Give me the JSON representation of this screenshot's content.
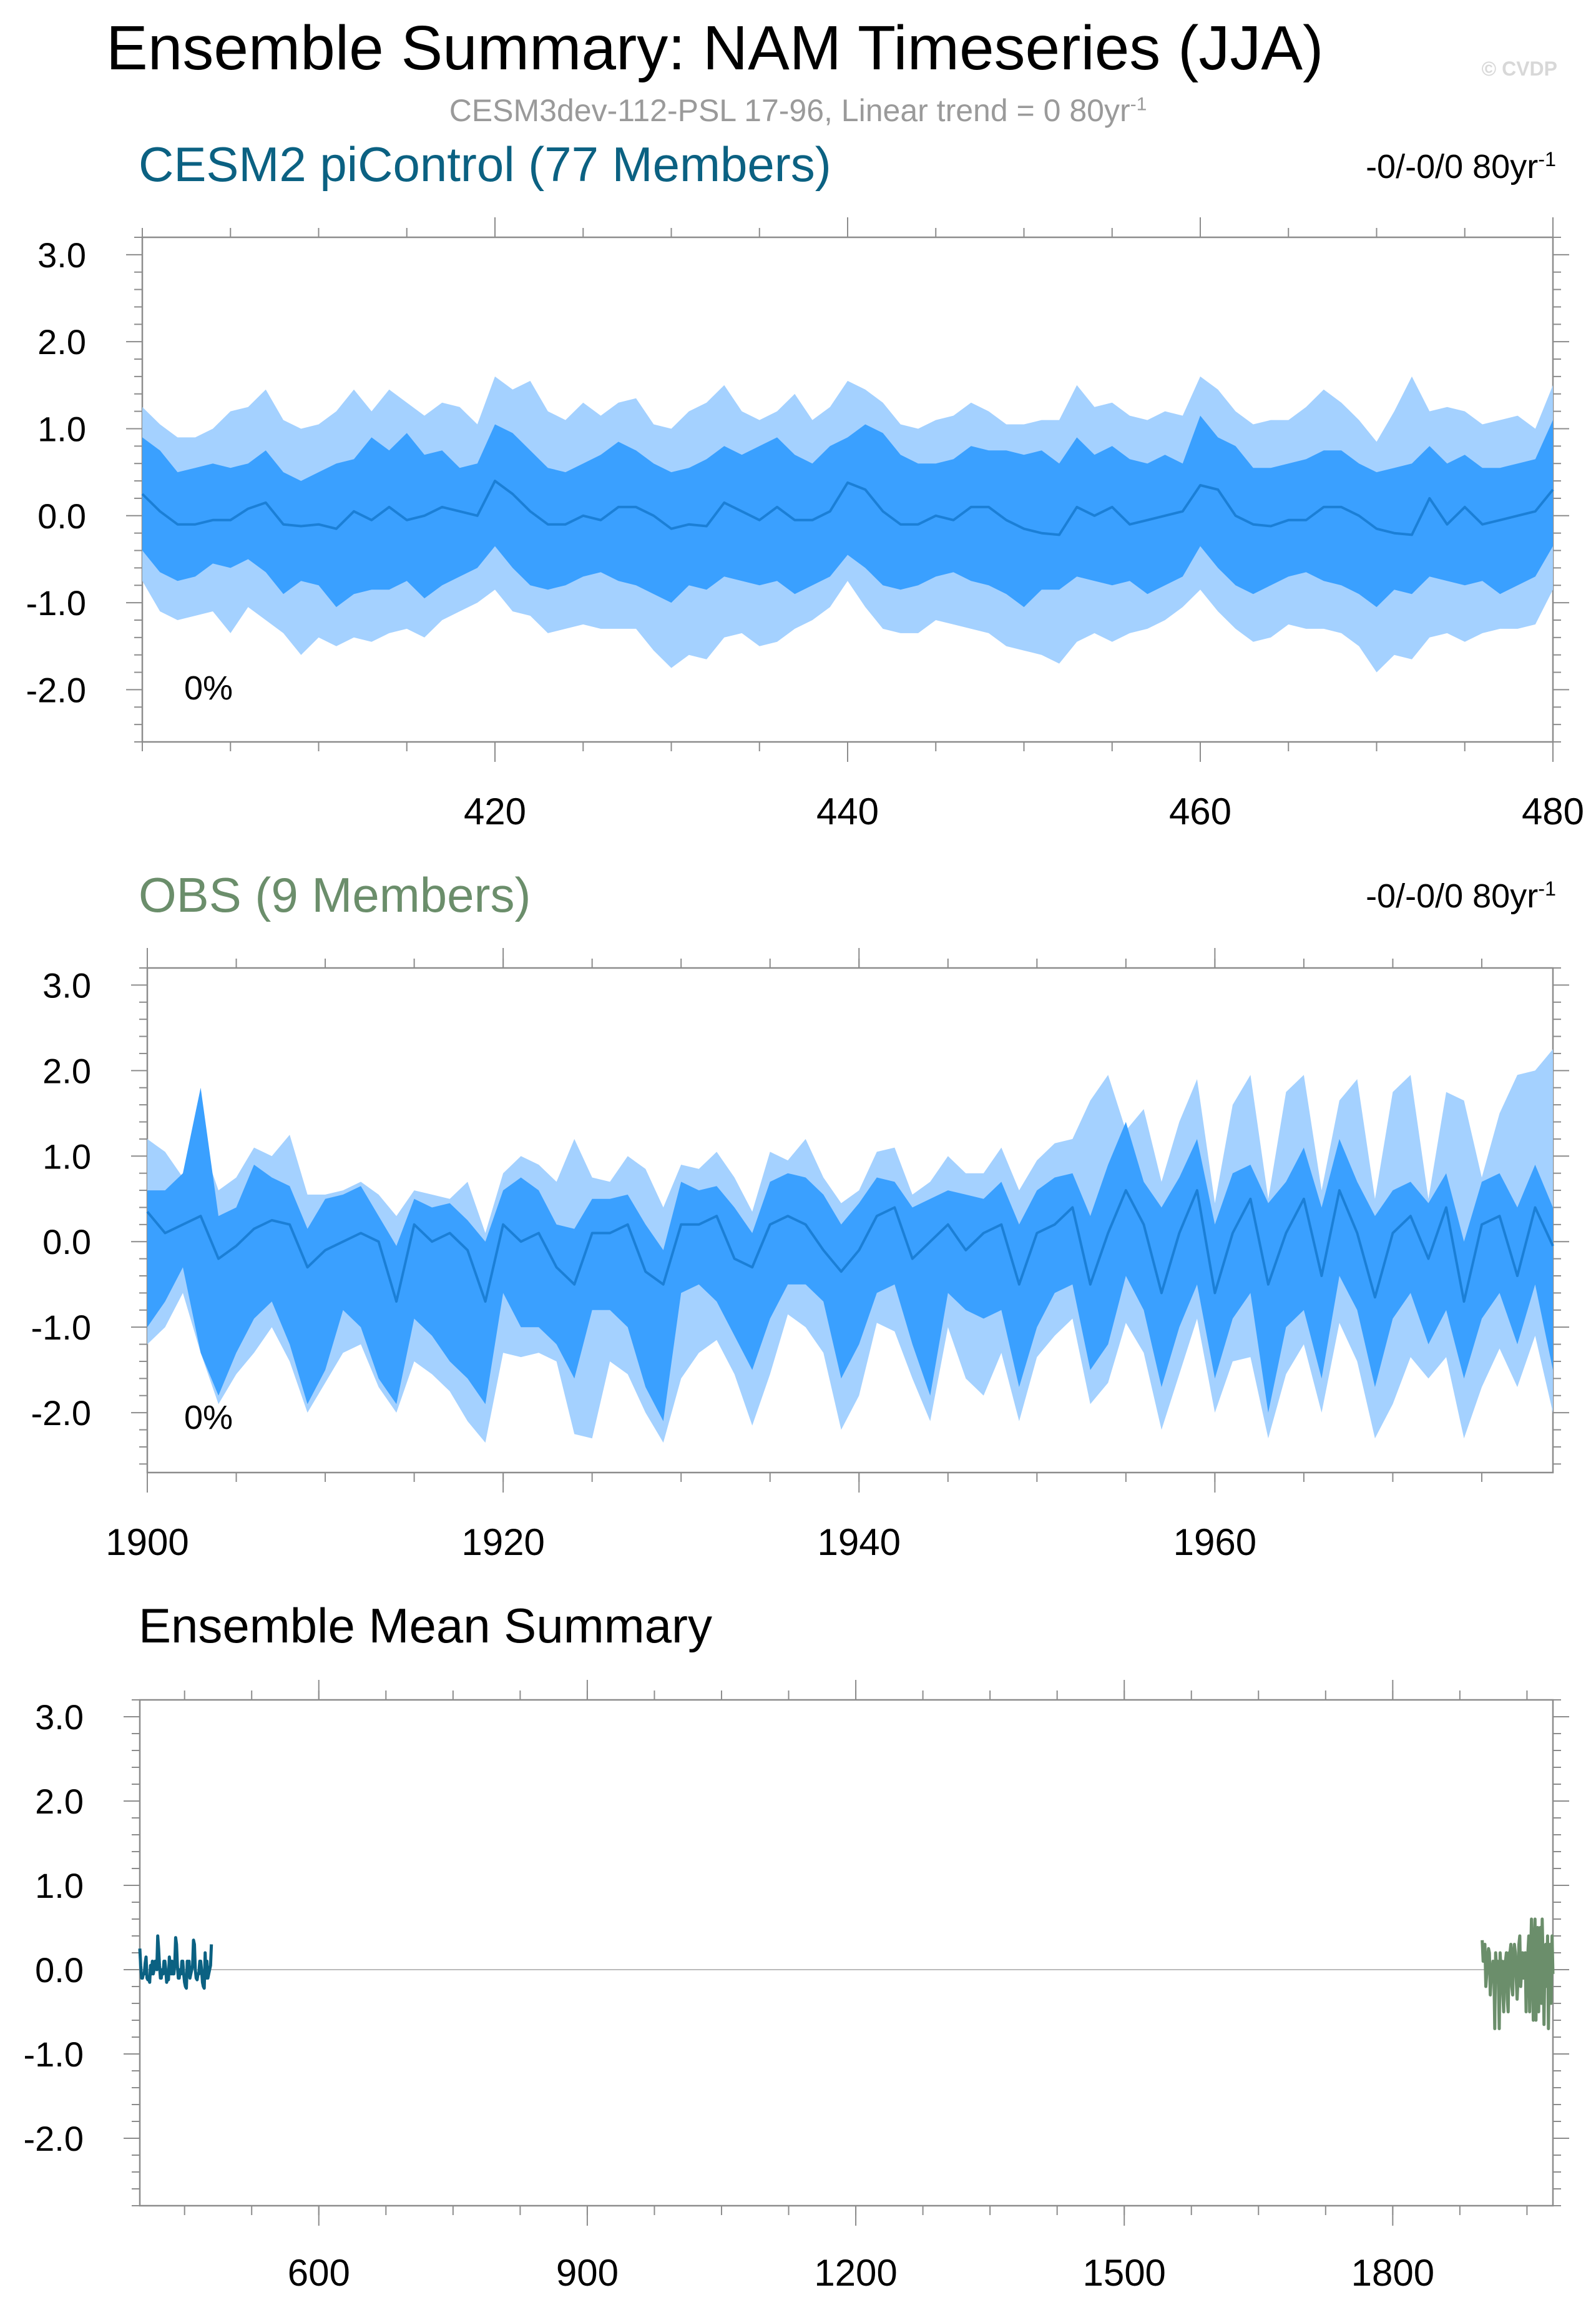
{
  "title": "Ensemble Summary: NAM Timeseries (JJA)",
  "watermark": "© CVDP",
  "subtitle": {
    "text": "CESM3dev-112-PSL 17-96, Linear trend = 0 80yr",
    "sup": "-1"
  },
  "colors": {
    "cesm": "#0b6182",
    "obs": "#6b8e6b",
    "inner_band": "#3aa0ff",
    "outer_band": "#a4d1ff",
    "mean_line": "#1b7fd6"
  },
  "chart_data": [
    {
      "type": "area",
      "title": "CESM2 piControl (77 Members)",
      "trend_label": {
        "text": "-0/-0/0 80yr",
        "sup": "-1"
      },
      "percent_label": "0%",
      "xlim": [
        400,
        480
      ],
      "ylim": [
        -2.6,
        3.2
      ],
      "x_ticks": [
        420,
        440,
        460,
        480
      ],
      "y_ticks": [
        "3.0",
        "2.0",
        "1.0",
        "0.0",
        "-1.0",
        "-2.0"
      ],
      "y_tick_values": [
        3,
        2,
        1,
        0,
        -1,
        -2
      ],
      "x": [
        400,
        401,
        402,
        403,
        404,
        405,
        406,
        407,
        408,
        409,
        410,
        411,
        412,
        413,
        414,
        415,
        416,
        417,
        418,
        419,
        420,
        421,
        422,
        423,
        424,
        425,
        426,
        427,
        428,
        429,
        430,
        431,
        432,
        433,
        434,
        435,
        436,
        437,
        438,
        439,
        440,
        441,
        442,
        443,
        444,
        445,
        446,
        447,
        448,
        449,
        450,
        451,
        452,
        453,
        454,
        455,
        456,
        457,
        458,
        459,
        460,
        461,
        462,
        463,
        464,
        465,
        466,
        467,
        468,
        469,
        470,
        471,
        472,
        473,
        474,
        475,
        476,
        477,
        478,
        479,
        480
      ],
      "mean": [
        0.25,
        0.05,
        -0.1,
        -0.1,
        -0.05,
        -0.05,
        0.08,
        0.15,
        -0.1,
        -0.12,
        -0.1,
        -0.15,
        0.05,
        -0.05,
        0.1,
        -0.05,
        0.0,
        0.1,
        0.05,
        0.0,
        0.4,
        0.25,
        0.05,
        -0.1,
        -0.1,
        0.0,
        -0.05,
        0.1,
        0.1,
        0.0,
        -0.15,
        -0.1,
        -0.12,
        0.15,
        0.05,
        -0.05,
        0.1,
        -0.05,
        -0.05,
        0.05,
        0.38,
        0.3,
        0.05,
        -0.1,
        -0.1,
        0.0,
        -0.05,
        0.1,
        0.1,
        -0.05,
        -0.15,
        -0.2,
        -0.22,
        0.1,
        0.0,
        0.1,
        -0.1,
        -0.05,
        0.0,
        0.05,
        0.35,
        0.3,
        0.0,
        -0.1,
        -0.12,
        -0.05,
        -0.05,
        0.1,
        0.1,
        0.0,
        -0.15,
        -0.2,
        -0.22,
        0.2,
        -0.1,
        0.1,
        -0.1,
        -0.05,
        0.0,
        0.05,
        0.3
      ],
      "inner_upper": [
        0.9,
        0.75,
        0.5,
        0.55,
        0.6,
        0.55,
        0.6,
        0.75,
        0.5,
        0.4,
        0.5,
        0.6,
        0.65,
        0.9,
        0.75,
        0.95,
        0.7,
        0.75,
        0.55,
        0.6,
        1.05,
        0.95,
        0.75,
        0.55,
        0.5,
        0.6,
        0.7,
        0.85,
        0.75,
        0.6,
        0.5,
        0.55,
        0.65,
        0.8,
        0.7,
        0.8,
        0.9,
        0.7,
        0.6,
        0.8,
        0.9,
        1.05,
        0.95,
        0.7,
        0.6,
        0.6,
        0.65,
        0.8,
        0.75,
        0.75,
        0.7,
        0.75,
        0.6,
        0.9,
        0.7,
        0.8,
        0.65,
        0.6,
        0.7,
        0.6,
        1.15,
        0.9,
        0.8,
        0.55,
        0.55,
        0.6,
        0.65,
        0.75,
        0.75,
        0.6,
        0.5,
        0.55,
        0.6,
        0.8,
        0.6,
        0.7,
        0.55,
        0.55,
        0.6,
        0.65,
        1.1
      ],
      "inner_lower": [
        -0.4,
        -0.65,
        -0.75,
        -0.7,
        -0.55,
        -0.6,
        -0.5,
        -0.65,
        -0.9,
        -0.75,
        -0.8,
        -1.05,
        -0.9,
        -0.85,
        -0.85,
        -0.75,
        -0.95,
        -0.8,
        -0.7,
        -0.6,
        -0.35,
        -0.6,
        -0.8,
        -0.85,
        -0.8,
        -0.7,
        -0.65,
        -0.75,
        -0.8,
        -0.9,
        -1.0,
        -0.8,
        -0.85,
        -0.7,
        -0.75,
        -0.8,
        -0.75,
        -0.9,
        -0.8,
        -0.7,
        -0.45,
        -0.6,
        -0.8,
        -0.85,
        -0.8,
        -0.7,
        -0.65,
        -0.75,
        -0.8,
        -0.9,
        -1.05,
        -0.85,
        -0.85,
        -0.7,
        -0.75,
        -0.8,
        -0.75,
        -0.9,
        -0.8,
        -0.7,
        -0.35,
        -0.6,
        -0.8,
        -0.9,
        -0.8,
        -0.7,
        -0.65,
        -0.75,
        -0.8,
        -0.9,
        -1.05,
        -0.85,
        -0.9,
        -0.7,
        -0.75,
        -0.8,
        -0.75,
        -0.9,
        -0.8,
        -0.7,
        -0.35
      ],
      "outer_upper": [
        1.25,
        1.05,
        0.9,
        0.9,
        1.0,
        1.2,
        1.25,
        1.45,
        1.1,
        1.0,
        1.05,
        1.2,
        1.45,
        1.2,
        1.45,
        1.3,
        1.15,
        1.3,
        1.25,
        1.05,
        1.6,
        1.45,
        1.55,
        1.2,
        1.1,
        1.3,
        1.15,
        1.3,
        1.35,
        1.05,
        1.0,
        1.2,
        1.3,
        1.5,
        1.2,
        1.1,
        1.2,
        1.4,
        1.1,
        1.25,
        1.55,
        1.45,
        1.3,
        1.05,
        1.0,
        1.1,
        1.15,
        1.3,
        1.2,
        1.05,
        1.05,
        1.1,
        1.1,
        1.5,
        1.25,
        1.3,
        1.15,
        1.1,
        1.2,
        1.15,
        1.6,
        1.45,
        1.2,
        1.05,
        1.1,
        1.1,
        1.25,
        1.45,
        1.3,
        1.1,
        0.85,
        1.2,
        1.6,
        1.2,
        1.25,
        1.2,
        1.05,
        1.1,
        1.15,
        1.0,
        1.5
      ],
      "outer_lower": [
        -0.75,
        -1.1,
        -1.2,
        -1.15,
        -1.1,
        -1.35,
        -1.05,
        -1.2,
        -1.35,
        -1.6,
        -1.4,
        -1.5,
        -1.4,
        -1.45,
        -1.35,
        -1.3,
        -1.4,
        -1.2,
        -1.1,
        -1.0,
        -0.85,
        -1.1,
        -1.15,
        -1.35,
        -1.3,
        -1.25,
        -1.3,
        -1.3,
        -1.3,
        -1.55,
        -1.75,
        -1.6,
        -1.65,
        -1.4,
        -1.35,
        -1.5,
        -1.45,
        -1.3,
        -1.2,
        -1.05,
        -0.75,
        -1.05,
        -1.3,
        -1.35,
        -1.35,
        -1.2,
        -1.25,
        -1.3,
        -1.35,
        -1.5,
        -1.55,
        -1.6,
        -1.7,
        -1.45,
        -1.35,
        -1.45,
        -1.35,
        -1.3,
        -1.2,
        -1.05,
        -0.85,
        -1.1,
        -1.3,
        -1.45,
        -1.4,
        -1.25,
        -1.3,
        -1.3,
        -1.35,
        -1.5,
        -1.8,
        -1.6,
        -1.65,
        -1.4,
        -1.35,
        -1.45,
        -1.35,
        -1.3,
        -1.3,
        -1.25,
        -0.85
      ]
    },
    {
      "type": "area",
      "title": "OBS (9 Members)",
      "trend_label": {
        "text": "-0/-0/0 80yr",
        "sup": "-1"
      },
      "percent_label": "0%",
      "xlim": [
        1900,
        1979
      ],
      "ylim": [
        -2.7,
        3.2
      ],
      "x_ticks": [
        1900,
        1920,
        1940,
        1960
      ],
      "y_ticks": [
        "3.0",
        "2.0",
        "1.0",
        "0.0",
        "-1.0",
        "-2.0"
      ],
      "y_tick_values": [
        3,
        2,
        1,
        0,
        -1,
        -2
      ],
      "x": [
        1900,
        1901,
        1902,
        1903,
        1904,
        1905,
        1906,
        1907,
        1908,
        1909,
        1910,
        1911,
        1912,
        1913,
        1914,
        1915,
        1916,
        1917,
        1918,
        1919,
        1920,
        1921,
        1922,
        1923,
        1924,
        1925,
        1926,
        1927,
        1928,
        1929,
        1930,
        1931,
        1932,
        1933,
        1934,
        1935,
        1936,
        1937,
        1938,
        1939,
        1940,
        1941,
        1942,
        1943,
        1944,
        1945,
        1946,
        1947,
        1948,
        1949,
        1950,
        1951,
        1952,
        1953,
        1954,
        1955,
        1956,
        1957,
        1958,
        1959,
        1960,
        1961,
        1962,
        1963,
        1964,
        1965,
        1966,
        1967,
        1968,
        1969,
        1970,
        1971,
        1972,
        1973,
        1974,
        1975,
        1976,
        1977,
        1978,
        1979
      ],
      "mean": [
        0.35,
        0.1,
        0.2,
        0.3,
        -0.2,
        -0.05,
        0.15,
        0.25,
        0.2,
        -0.3,
        -0.1,
        0.0,
        0.1,
        0.0,
        -0.7,
        0.2,
        0.0,
        0.1,
        -0.1,
        -0.7,
        0.2,
        0.0,
        0.1,
        -0.3,
        -0.5,
        0.1,
        0.1,
        0.2,
        -0.35,
        -0.5,
        0.2,
        0.2,
        0.3,
        -0.2,
        -0.3,
        0.2,
        0.3,
        0.2,
        -0.1,
        -0.35,
        -0.1,
        0.3,
        0.4,
        -0.2,
        0.0,
        0.2,
        -0.1,
        0.1,
        0.2,
        -0.5,
        0.1,
        0.2,
        0.4,
        -0.5,
        0.1,
        0.6,
        0.2,
        -0.6,
        0.1,
        0.6,
        -0.6,
        0.1,
        0.5,
        -0.5,
        0.1,
        0.5,
        -0.4,
        0.6,
        0.1,
        -0.65,
        0.1,
        0.3,
        -0.2,
        0.4,
        -0.7,
        0.2,
        0.3,
        -0.4,
        0.4,
        -0.05
      ],
      "inner_upper": [
        0.6,
        0.6,
        0.8,
        1.8,
        0.3,
        0.4,
        0.9,
        0.75,
        0.65,
        0.15,
        0.5,
        0.55,
        0.65,
        0.3,
        -0.05,
        0.5,
        0.4,
        0.45,
        0.25,
        0.0,
        0.6,
        0.75,
        0.6,
        0.2,
        0.15,
        0.5,
        0.5,
        0.55,
        0.2,
        -0.1,
        0.7,
        0.6,
        0.65,
        0.4,
        0.1,
        0.7,
        0.8,
        0.75,
        0.55,
        0.2,
        0.45,
        0.75,
        0.7,
        0.4,
        0.5,
        0.6,
        0.55,
        0.5,
        0.7,
        0.2,
        0.6,
        0.75,
        0.8,
        0.3,
        0.9,
        1.4,
        0.7,
        0.4,
        0.75,
        1.2,
        0.2,
        0.8,
        0.9,
        0.45,
        0.7,
        1.1,
        0.4,
        1.2,
        0.7,
        0.3,
        0.6,
        0.7,
        0.45,
        0.8,
        0.0,
        0.7,
        0.8,
        0.4,
        0.9,
        0.4
      ],
      "inner_lower": [
        -1.0,
        -0.7,
        -0.3,
        -1.3,
        -1.8,
        -1.3,
        -0.9,
        -0.7,
        -1.2,
        -1.9,
        -1.5,
        -0.8,
        -1.0,
        -1.6,
        -1.9,
        -0.9,
        -1.1,
        -1.4,
        -1.6,
        -1.9,
        -0.6,
        -1.0,
        -1.0,
        -1.2,
        -1.6,
        -0.8,
        -0.8,
        -1.0,
        -1.7,
        -2.1,
        -0.6,
        -0.5,
        -0.7,
        -1.1,
        -1.5,
        -0.9,
        -0.5,
        -0.5,
        -0.7,
        -1.6,
        -1.2,
        -0.6,
        -0.5,
        -1.2,
        -1.8,
        -0.6,
        -0.8,
        -0.9,
        -0.8,
        -1.7,
        -1.0,
        -0.6,
        -0.5,
        -1.5,
        -1.2,
        -0.4,
        -0.8,
        -1.7,
        -1.0,
        -0.5,
        -1.6,
        -0.9,
        -0.6,
        -2.0,
        -1.0,
        -0.8,
        -1.6,
        -0.4,
        -0.8,
        -1.7,
        -0.9,
        -0.6,
        -1.2,
        -0.8,
        -1.6,
        -0.9,
        -0.6,
        -1.2,
        -0.5,
        -1.5
      ],
      "outer_upper": [
        1.2,
        1.05,
        0.75,
        1.2,
        0.6,
        0.75,
        1.1,
        1.0,
        1.25,
        0.55,
        0.55,
        0.6,
        0.7,
        0.55,
        0.3,
        0.6,
        0.55,
        0.5,
        0.7,
        0.1,
        0.8,
        1.0,
        0.9,
        0.7,
        1.2,
        0.75,
        0.7,
        1.0,
        0.85,
        0.4,
        0.9,
        0.85,
        1.05,
        0.75,
        0.35,
        1.05,
        0.95,
        1.2,
        0.75,
        0.45,
        0.6,
        1.05,
        1.1,
        0.55,
        0.7,
        1.0,
        0.8,
        0.8,
        1.1,
        0.6,
        0.95,
        1.15,
        1.2,
        1.65,
        1.95,
        1.3,
        1.55,
        0.7,
        1.4,
        1.9,
        0.45,
        1.6,
        1.95,
        0.5,
        1.75,
        1.95,
        0.6,
        1.65,
        1.9,
        0.5,
        1.75,
        1.95,
        0.5,
        1.75,
        1.65,
        0.75,
        1.5,
        1.95,
        2.0,
        2.25
      ],
      "outer_lower": [
        -1.2,
        -1.0,
        -0.6,
        -1.3,
        -1.9,
        -1.55,
        -1.3,
        -1.0,
        -1.4,
        -2.0,
        -1.65,
        -1.3,
        -1.2,
        -1.7,
        -2.0,
        -1.4,
        -1.55,
        -1.75,
        -2.1,
        -2.35,
        -1.3,
        -1.35,
        -1.3,
        -1.4,
        -2.25,
        -2.3,
        -1.4,
        -1.55,
        -2.0,
        -2.35,
        -1.6,
        -1.3,
        -1.15,
        -1.55,
        -2.15,
        -1.55,
        -0.85,
        -1.0,
        -1.3,
        -2.2,
        -1.8,
        -0.95,
        -1.05,
        -1.6,
        -2.1,
        -1.0,
        -1.6,
        -1.8,
        -1.3,
        -2.1,
        -1.35,
        -1.1,
        -0.9,
        -1.9,
        -1.65,
        -0.95,
        -1.3,
        -2.2,
        -1.55,
        -0.9,
        -2.0,
        -1.4,
        -1.35,
        -2.3,
        -1.55,
        -1.2,
        -2.0,
        -0.95,
        -1.4,
        -2.3,
        -1.9,
        -1.35,
        -1.6,
        -1.35,
        -2.3,
        -1.7,
        -1.25,
        -1.7,
        -1.1,
        -2.0
      ]
    },
    {
      "type": "line",
      "title": "Ensemble Mean Summary",
      "xlim": [
        400,
        1979
      ],
      "ylim": [
        -2.8,
        3.2
      ],
      "x_ticks": [
        600,
        900,
        1200,
        1500,
        1800
      ],
      "y_ticks": [
        "3.0",
        "2.0",
        "1.0",
        "0.0",
        "-1.0",
        "-2.0"
      ],
      "y_tick_values": [
        3,
        2,
        1,
        0,
        -1,
        -2
      ],
      "series": [
        {
          "source": "cesm",
          "x_start": 400,
          "x_step": 1,
          "values": [
            0.25,
            0.05,
            -0.1,
            -0.1,
            -0.05,
            -0.05,
            0.08,
            0.15,
            -0.1,
            -0.12,
            -0.1,
            -0.15,
            0.05,
            -0.05,
            0.1,
            -0.05,
            0.0,
            0.1,
            0.05,
            0.0,
            0.4,
            0.25,
            0.05,
            -0.1,
            -0.1,
            0.0,
            -0.05,
            0.1,
            0.1,
            0.0,
            -0.15,
            -0.1,
            -0.12,
            0.15,
            0.05,
            -0.05,
            0.1,
            -0.05,
            -0.05,
            0.05,
            0.38,
            0.3,
            0.05,
            -0.1,
            -0.1,
            0.0,
            -0.05,
            0.1,
            0.1,
            -0.05,
            -0.15,
            -0.2,
            -0.22,
            0.1,
            0.0,
            0.1,
            -0.1,
            -0.05,
            0.0,
            0.05,
            0.35,
            0.3,
            0.0,
            -0.1,
            -0.12,
            -0.05,
            -0.05,
            0.1,
            0.1,
            0.0,
            -0.15,
            -0.2,
            -0.22,
            0.2,
            -0.1,
            0.1,
            -0.1,
            -0.05,
            0.0,
            0.05,
            0.3
          ]
        },
        {
          "source": "obs",
          "x_start": 1900,
          "x_step": 1,
          "values": [
            0.35,
            0.1,
            0.2,
            0.3,
            -0.2,
            -0.05,
            0.15,
            0.25,
            0.2,
            -0.3,
            -0.1,
            0.0,
            0.1,
            0.0,
            -0.7,
            0.2,
            0.0,
            0.1,
            -0.1,
            -0.7,
            0.2,
            0.0,
            0.1,
            -0.3,
            -0.5,
            0.1,
            0.1,
            0.2,
            -0.35,
            -0.5,
            0.2,
            0.2,
            0.3,
            -0.2,
            -0.3,
            0.2,
            0.3,
            0.2,
            -0.1,
            -0.35,
            -0.1,
            0.3,
            0.4,
            -0.2,
            0.0,
            0.2,
            -0.1,
            0.1,
            0.2,
            -0.5,
            0.1,
            0.2,
            0.4,
            -0.5,
            0.1,
            0.6,
            0.2,
            -0.6,
            0.1,
            0.6,
            -0.6,
            0.1,
            0.5,
            -0.5,
            0.1,
            0.5,
            -0.4,
            0.6,
            0.1,
            -0.65,
            0.1,
            0.3,
            -0.2,
            0.4,
            -0.7,
            0.2,
            0.3,
            -0.4,
            0.4,
            -0.05
          ]
        }
      ]
    }
  ]
}
